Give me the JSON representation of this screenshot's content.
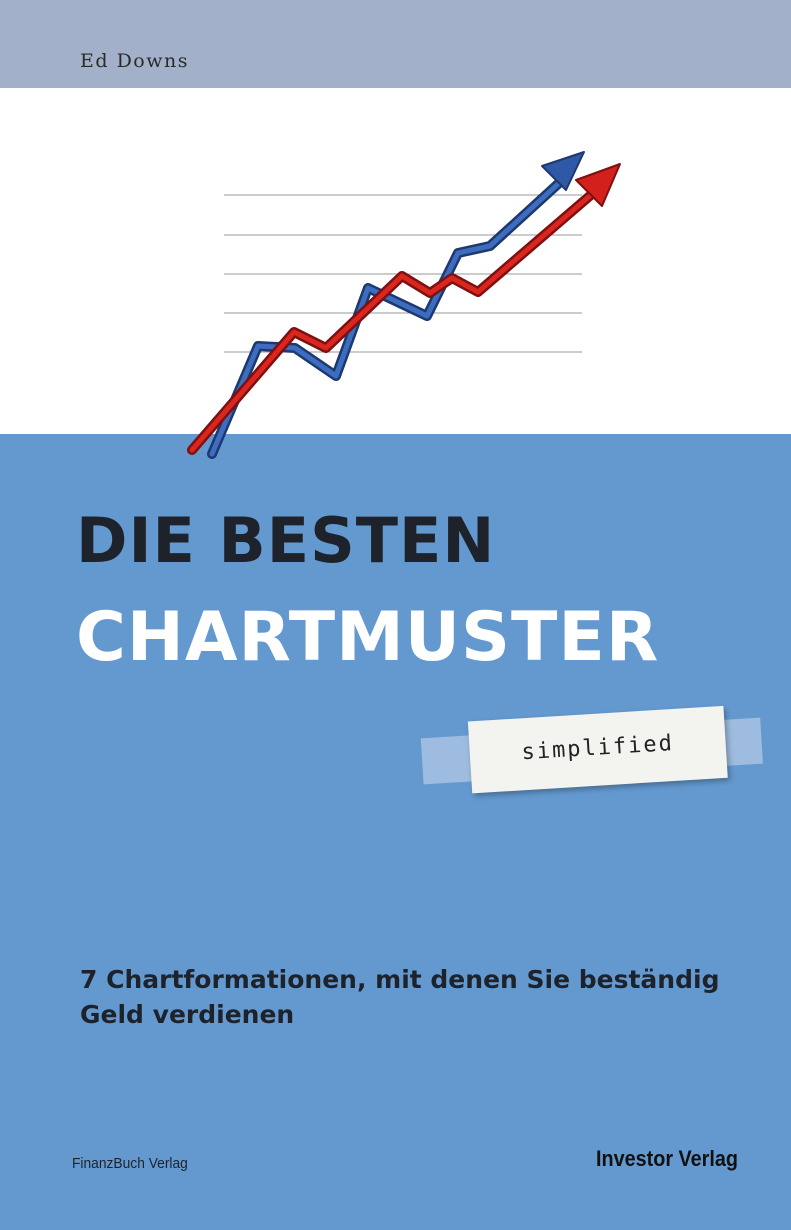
{
  "cover": {
    "author": "Ed Downs",
    "title_line1": "DIE BESTEN",
    "title_line2": "CHARTMUSTER",
    "label": "simplified",
    "subtitle_line1": "7 Chartformationen, mit denen Sie beständig",
    "subtitle_line2": "Geld verdienen",
    "publisher_left": "FinanzBuch Verlag",
    "publisher_right": "Investor Verlag"
  },
  "colors": {
    "author_band": "#a3b0c9",
    "background_blue": "#6499d0",
    "title_dark": "#1e232b",
    "arrow_red": "#d3201d",
    "arrow_blue": "#2f58a6"
  },
  "icons": [
    "rising-chart-arrows-icon",
    "tape-label-icon"
  ]
}
